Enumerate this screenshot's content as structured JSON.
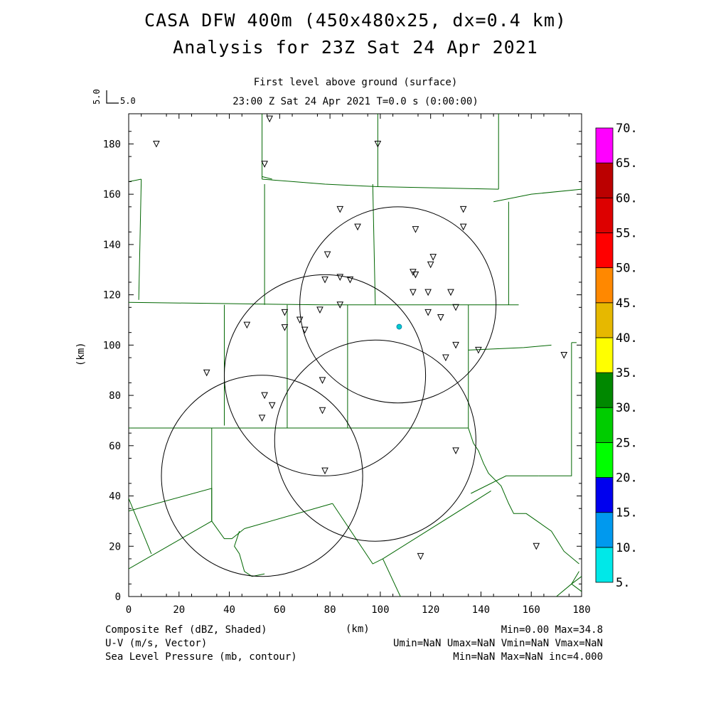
{
  "header": {
    "title_line1": "CASA DFW 400m (450x480x25, dx=0.4 km)",
    "title_line2": "Analysis for 23Z Sat 24 Apr 2021",
    "subtitle_level": "First level above ground (surface)",
    "subtitle_time": "23:00 Z Sat 24 Apr 2021    T=0.0 s (0:00:00)"
  },
  "vector_key": {
    "vertical_label": "5.0",
    "horizontal_label": "5.0"
  },
  "axes": {
    "x_label": "(km)",
    "y_label": "(km)",
    "x_range": [
      0,
      180
    ],
    "y_range": [
      0,
      192
    ],
    "x_ticks": [
      "0",
      "20",
      "40",
      "60",
      "80",
      "100",
      "120",
      "140",
      "160",
      "180"
    ],
    "y_ticks": [
      "0",
      "20",
      "40",
      "60",
      "80",
      "100",
      "120",
      "140",
      "160",
      "180"
    ]
  },
  "colorbar": {
    "labels": [
      "5.",
      "10.",
      "15.",
      "20.",
      "25.",
      "30.",
      "35.",
      "40.",
      "45.",
      "50.",
      "55.",
      "60.",
      "65.",
      "70."
    ],
    "colors": [
      "#00e8e8",
      "#0099ee",
      "#0000ee",
      "#00ff00",
      "#00cc00",
      "#008800",
      "#ffff00",
      "#e6b800",
      "#ff8800",
      "#ff0000",
      "#dd0000",
      "#bb0000",
      "#ff00ff"
    ]
  },
  "colors": {
    "county_lines": "#006600",
    "radar_rings": "#000000",
    "echo": "#00cccc"
  },
  "map": {
    "radar_rings": [
      {
        "center": [
          107,
          116
        ],
        "radius_km": 39
      },
      {
        "center": [
          78,
          88
        ],
        "radius_km": 40
      },
      {
        "center": [
          98,
          62
        ],
        "radius_km": 40
      },
      {
        "center": [
          53,
          48
        ],
        "radius_km": 40
      }
    ],
    "stations": [
      [
        56,
        190
      ],
      [
        11,
        180
      ],
      [
        54,
        172
      ],
      [
        99,
        180
      ],
      [
        84,
        154
      ],
      [
        91,
        147
      ],
      [
        114,
        146
      ],
      [
        133,
        154
      ],
      [
        133,
        147
      ],
      [
        79,
        136
      ],
      [
        121,
        135
      ],
      [
        113,
        129
      ],
      [
        114,
        128
      ],
      [
        120,
        132
      ],
      [
        78,
        126
      ],
      [
        84,
        127
      ],
      [
        88,
        126
      ],
      [
        113,
        121
      ],
      [
        119,
        121
      ],
      [
        128,
        121
      ],
      [
        62,
        113
      ],
      [
        68,
        110
      ],
      [
        76,
        114
      ],
      [
        84,
        116
      ],
      [
        119,
        113
      ],
      [
        124,
        111
      ],
      [
        130,
        115
      ],
      [
        47,
        108
      ],
      [
        62,
        107
      ],
      [
        70,
        106
      ],
      [
        130,
        100
      ],
      [
        139,
        98
      ],
      [
        126,
        95
      ],
      [
        173,
        96
      ],
      [
        31,
        89
      ],
      [
        77,
        86
      ],
      [
        54,
        80
      ],
      [
        57,
        76
      ],
      [
        77,
        74
      ],
      [
        53,
        71
      ],
      [
        130,
        58
      ],
      [
        78,
        50
      ],
      [
        116,
        16
      ],
      [
        162,
        20
      ]
    ],
    "echoes": [
      {
        "position": [
          107.5,
          107.3
        ]
      }
    ],
    "county_lines": [
      [
        [
          0,
          165
        ],
        [
          5,
          166
        ]
      ],
      [
        [
          5,
          166
        ],
        [
          4,
          118
        ]
      ],
      [
        [
          0,
          117
        ],
        [
          77,
          116
        ],
        [
          98,
          116
        ],
        [
          155,
          116
        ]
      ],
      [
        [
          57,
          166
        ],
        [
          53,
          167
        ]
      ],
      [
        [
          53,
          166
        ],
        [
          53,
          192
        ]
      ],
      [
        [
          53,
          166
        ],
        [
          78,
          164
        ],
        [
          99,
          163
        ]
      ],
      [
        [
          99,
          163
        ],
        [
          99,
          192
        ]
      ],
      [
        [
          99,
          163
        ],
        [
          147,
          162
        ]
      ],
      [
        [
          147,
          162
        ],
        [
          147,
          192
        ]
      ],
      [
        [
          145,
          157
        ],
        [
          160,
          160
        ],
        [
          180,
          162
        ]
      ],
      [
        [
          54,
          164
        ],
        [
          54,
          116
        ]
      ],
      [
        [
          63,
          116
        ],
        [
          63,
          67
        ]
      ],
      [
        [
          97,
          164
        ],
        [
          98,
          116
        ]
      ],
      [
        [
          151,
          157
        ],
        [
          151,
          116
        ]
      ],
      [
        [
          38,
          116
        ],
        [
          38,
          68
        ]
      ],
      [
        [
          87,
          116
        ],
        [
          87,
          67
        ]
      ],
      [
        [
          135,
          116
        ],
        [
          135,
          67
        ]
      ],
      [
        [
          135,
          98
        ],
        [
          157,
          99
        ],
        [
          168,
          100
        ]
      ],
      [
        [
          176,
          101
        ],
        [
          176,
          48
        ],
        [
          163,
          48
        ]
      ],
      [
        [
          176,
          101
        ],
        [
          178,
          101
        ]
      ],
      [
        [
          0,
          67
        ],
        [
          38,
          67
        ],
        [
          87,
          67
        ],
        [
          135,
          67
        ]
      ],
      [
        [
          33,
          67
        ],
        [
          33,
          30
        ]
      ],
      [
        [
          0,
          34
        ],
        [
          33,
          43
        ],
        [
          33,
          30
        ]
      ],
      [
        [
          0,
          39
        ],
        [
          9,
          17
        ]
      ],
      [
        [
          0,
          11
        ],
        [
          33,
          30
        ],
        [
          38,
          23
        ],
        [
          41,
          23
        ],
        [
          46,
          27
        ]
      ],
      [
        [
          46,
          27
        ],
        [
          81,
          37
        ]
      ],
      [
        [
          81,
          37
        ],
        [
          97,
          13
        ],
        [
          101,
          15
        ]
      ],
      [
        [
          101,
          15
        ],
        [
          144,
          42
        ]
      ],
      [
        [
          136,
          41
        ],
        [
          150,
          48
        ],
        [
          163,
          48
        ]
      ],
      [
        [
          135,
          67
        ],
        [
          137,
          61
        ],
        [
          139,
          58
        ],
        [
          141,
          53
        ],
        [
          143,
          49
        ],
        [
          148,
          44
        ],
        [
          151,
          37
        ],
        [
          153,
          33
        ],
        [
          158,
          33
        ],
        [
          168,
          26
        ],
        [
          173,
          18
        ],
        [
          179,
          13
        ]
      ],
      [
        [
          44,
          26
        ],
        [
          42,
          20
        ],
        [
          44,
          17
        ],
        [
          46,
          10
        ],
        [
          49,
          8
        ],
        [
          54,
          9
        ]
      ],
      [
        [
          101,
          15
        ],
        [
          108,
          0
        ]
      ],
      [
        [
          170,
          0
        ],
        [
          176,
          5
        ],
        [
          180,
          8
        ]
      ],
      [
        [
          180,
          2
        ],
        [
          176,
          5
        ],
        [
          179,
          10
        ]
      ]
    ]
  }
}
